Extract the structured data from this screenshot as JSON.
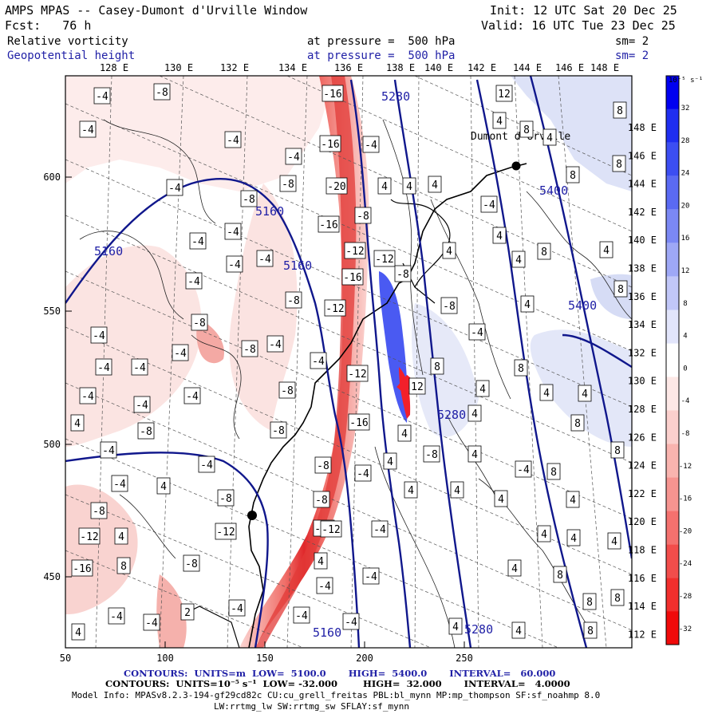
{
  "header": {
    "title": "AMPS MPAS -- Casey-Dumont d'Urville Window",
    "forecast": "Fcst:   76 h",
    "init": "Init: 12 UTC Sat 20 Dec 25",
    "valid": "Valid: 16 UTC Tue 23 Dec 25",
    "field1_name": "Relative vorticity",
    "field1_level": "at pressure =  500 hPa",
    "field1_smooth": "sm= 2",
    "field2_name": "Geopotential height",
    "field2_level": "at pressure =  500 hPa",
    "field2_smooth": "sm= 2"
  },
  "map": {
    "top_longitudes": [
      "128 E",
      "130 E",
      "132 E",
      "134 E",
      "136 E",
      "138 E",
      "140 E",
      "142 E",
      "144 E",
      "146 E",
      "148 E"
    ],
    "right_longitudes": [
      "148 E",
      "146 E",
      "144 E",
      "142 E",
      "140 E",
      "138 E",
      "136 E",
      "134 E",
      "132 E",
      "130 E",
      "128 E",
      "126 E",
      "124 E",
      "122 E",
      "120 E",
      "118 E",
      "116 E",
      "114 E",
      "112 E"
    ],
    "x_ticks": [
      "50",
      "100",
      "150",
      "200",
      "250"
    ],
    "y_ticks": [
      "600",
      "550",
      "500",
      "450"
    ],
    "height_labels": [
      "5160",
      "5160",
      "5160",
      "5280",
      "5280",
      "5280",
      "5400",
      "5400",
      "5160"
    ],
    "station_label": "Dumont d'Urville",
    "colors": {
      "cyclonic": "#2a3df0",
      "anticyclonic": "#f2202a",
      "height_contour": "#10178c"
    }
  },
  "colorbar": {
    "unit": "10⁻⁵ s⁻¹",
    "labels": [
      "32",
      "28",
      "24",
      "20",
      "16",
      "12",
      "8",
      "4",
      "0",
      "-4",
      "-8",
      "-12",
      "-16",
      "-20",
      "-24",
      "-28",
      "-32"
    ]
  },
  "footer": {
    "line1": "CONTOURS:  UNITS=m  LOW=  5100.0       HIGH=  5400.0       INTERVAL=   60.000",
    "line2": "CONTOURS:  UNITS=10⁻⁵ s⁻¹  LOW= -32.000        HIGH=  32.000       INTERVAL=   4.0000",
    "line3": "Model Info: MPASv8.2.3-194-gf29cd82c CU:cu_grell_freitas PBL:bl_mynn MP:mp_thompson SF:sf_noahmp 8.0",
    "line4": "LW:rrtmg_lw SW:rrtmg_sw SFLAY:sf_mynn"
  }
}
